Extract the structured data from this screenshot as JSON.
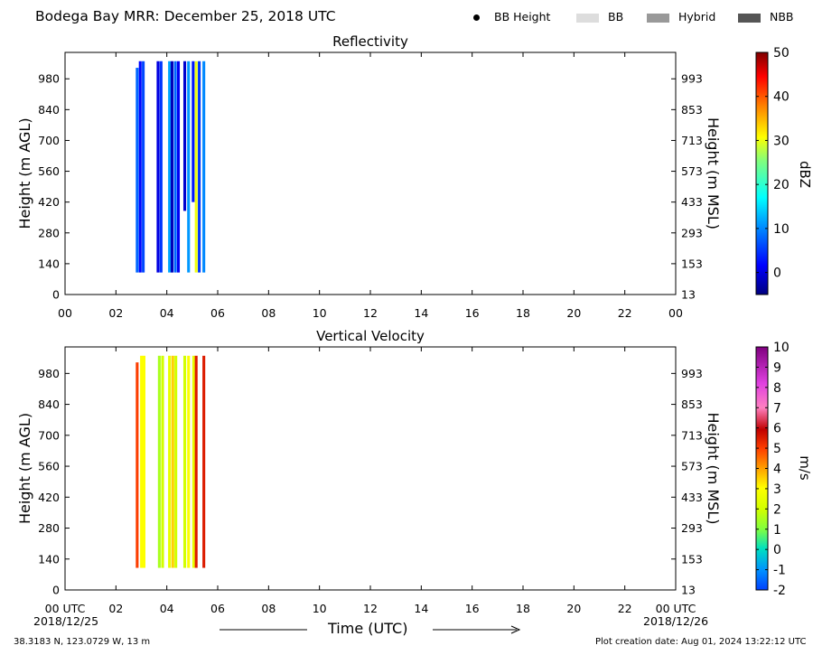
{
  "header": {
    "title": "Bodega Bay MRR:  December 25, 2018 UTC",
    "legend": [
      {
        "label": "BB Height",
        "kind": "dot",
        "color": "#000000"
      },
      {
        "label": "BB",
        "kind": "swatch",
        "color": "#dddddd"
      },
      {
        "label": "Hybrid",
        "kind": "swatch",
        "color": "#999999"
      },
      {
        "label": "NBB",
        "kind": "swatch",
        "color": "#555555"
      }
    ]
  },
  "footer": {
    "coords": "38.3183 N, 123.0729 W, 13 m",
    "created": "Plot creation date: Aug 01, 2024 13:22:12 UTC",
    "xaxis_title": "Time (UTC)",
    "date_left": "2018/12/25",
    "date_right": "2018/12/26"
  },
  "chart_data": [
    {
      "type": "heatmap",
      "title": "Reflectivity",
      "xlabel": "Time (UTC)",
      "ylabel": "Height (m AGL)",
      "ylabel_right": "Height (m MSL)",
      "xlim": [
        0,
        24
      ],
      "ylim": [
        0,
        1100
      ],
      "x_ticks": [
        "00",
        "02",
        "04",
        "06",
        "08",
        "10",
        "12",
        "14",
        "16",
        "18",
        "20",
        "22",
        "00"
      ],
      "y_ticks": [
        0,
        140,
        280,
        420,
        560,
        700,
        840,
        980
      ],
      "y_ticks_right": [
        "13",
        "153",
        "293",
        "433",
        "573",
        "713",
        "853",
        "993"
      ],
      "colorbar": {
        "label": "dBZ",
        "range": [
          -5,
          50
        ],
        "ticks": [
          0,
          10,
          20,
          30,
          40,
          50
        ]
      },
      "columns": [
        {
          "t": 2.78,
          "h0": 100,
          "h1": 1030,
          "v": 8
        },
        {
          "t": 2.9,
          "h0": 100,
          "h1": 1060,
          "v": 2
        },
        {
          "t": 3.02,
          "h0": 100,
          "h1": 1060,
          "v": 6
        },
        {
          "t": 3.6,
          "h0": 100,
          "h1": 1060,
          "v": 0
        },
        {
          "t": 3.72,
          "h0": 100,
          "h1": 1060,
          "v": 5
        },
        {
          "t": 4.05,
          "h0": 100,
          "h1": 1060,
          "v": 12
        },
        {
          "t": 4.15,
          "h0": 100,
          "h1": 1060,
          "v": -2
        },
        {
          "t": 4.28,
          "h0": 100,
          "h1": 1060,
          "v": 8
        },
        {
          "t": 4.4,
          "h0": 100,
          "h1": 1060,
          "v": 1
        },
        {
          "t": 4.65,
          "h0": 380,
          "h1": 1060,
          "v": -1
        },
        {
          "t": 4.8,
          "h0": 100,
          "h1": 1060,
          "v": 11
        },
        {
          "t": 4.98,
          "h0": 420,
          "h1": 1060,
          "v": 3
        },
        {
          "t": 5.1,
          "h0": 100,
          "h1": 1060,
          "v": 30
        },
        {
          "t": 5.22,
          "h0": 100,
          "h1": 1060,
          "v": 5
        },
        {
          "t": 5.4,
          "h0": 100,
          "h1": 1060,
          "v": 10
        }
      ]
    },
    {
      "type": "heatmap",
      "title": "Vertical Velocity",
      "xlabel": "Time (UTC)",
      "ylabel": "Height (m AGL)",
      "ylabel_right": "Height (m MSL)",
      "xlim": [
        0,
        24
      ],
      "ylim": [
        0,
        1100
      ],
      "x_ticks": [
        "00 UTC",
        "02",
        "04",
        "06",
        "08",
        "10",
        "12",
        "14",
        "16",
        "18",
        "20",
        "22",
        "00 UTC"
      ],
      "y_ticks": [
        0,
        140,
        280,
        420,
        560,
        700,
        840,
        980
      ],
      "y_ticks_right": [
        "13",
        "153",
        "293",
        "433",
        "573",
        "713",
        "853",
        "993"
      ],
      "colorbar": {
        "label": "m/s",
        "range": [
          -2,
          10
        ],
        "ticks": [
          -2,
          -1,
          0,
          1,
          2,
          3,
          4,
          5,
          6,
          7,
          8,
          9,
          10
        ]
      },
      "columns": [
        {
          "t": 2.78,
          "h0": 100,
          "h1": 1030,
          "v": 5
        },
        {
          "t": 2.95,
          "h0": 100,
          "h1": 1060,
          "v": 3
        },
        {
          "t": 3.05,
          "h0": 100,
          "h1": 1060,
          "v": 3
        },
        {
          "t": 3.65,
          "h0": 100,
          "h1": 1060,
          "v": 1.5
        },
        {
          "t": 3.78,
          "h0": 100,
          "h1": 1060,
          "v": 2
        },
        {
          "t": 4.05,
          "h0": 100,
          "h1": 1060,
          "v": 2.5
        },
        {
          "t": 4.18,
          "h0": 100,
          "h1": 1060,
          "v": 3.5
        },
        {
          "t": 4.3,
          "h0": 100,
          "h1": 1060,
          "v": 2
        },
        {
          "t": 4.65,
          "h0": 100,
          "h1": 1060,
          "v": 2
        },
        {
          "t": 4.8,
          "h0": 100,
          "h1": 1060,
          "v": 3
        },
        {
          "t": 5.0,
          "h0": 100,
          "h1": 1060,
          "v": 2.5
        },
        {
          "t": 5.1,
          "h0": 100,
          "h1": 1060,
          "v": 5.5
        },
        {
          "t": 5.4,
          "h0": 100,
          "h1": 1060,
          "v": 5.5
        }
      ]
    }
  ]
}
